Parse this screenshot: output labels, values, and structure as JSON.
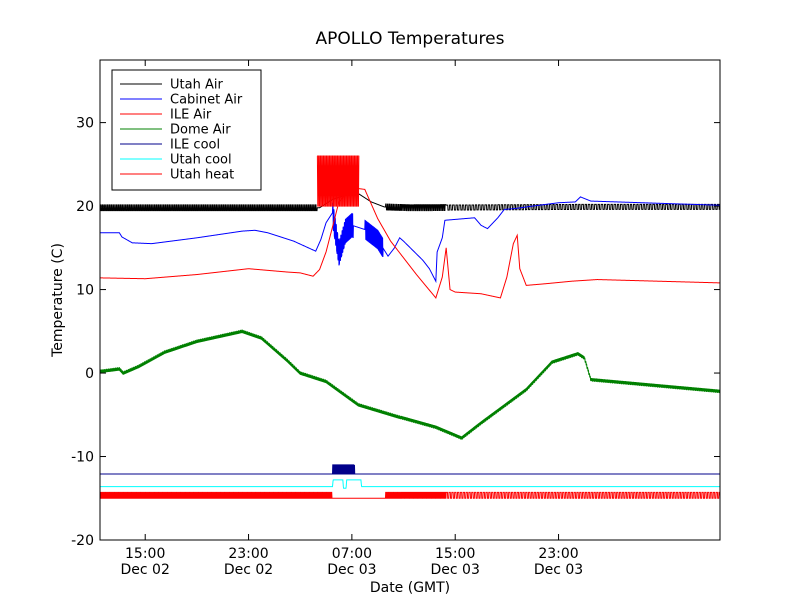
{
  "chart_data": {
    "type": "line",
    "title": "APOLLO Temperatures",
    "xlabel": "Date (GMT)",
    "ylabel": "Temperature (C)",
    "ylim": [
      -20,
      37.5
    ],
    "xlim_hours": [
      11.5,
      24.0,
      36.0,
      48.0,
      59.5
    ],
    "yticks": [
      -20,
      -10,
      0,
      10,
      20,
      30
    ],
    "ytick_labels": [
      "-20",
      "-10",
      "0",
      "10",
      "20",
      "30"
    ],
    "xticks": [
      {
        "hour": 15,
        "time": "15:00",
        "date": "Dec 02"
      },
      {
        "hour": 23,
        "time": "23:00",
        "date": "Dec 02"
      },
      {
        "hour": 31,
        "time": "07:00",
        "date": "Dec 03"
      },
      {
        "hour": 39,
        "time": "15:00",
        "date": "Dec 03"
      },
      {
        "hour": 47,
        "time": "23:00",
        "date": "Dec 03"
      }
    ],
    "grid": false,
    "legend_position": "top-left",
    "series": [
      {
        "name": "Utah Air",
        "color": "#000000",
        "line_width": 1,
        "points": [
          [
            11.5,
            19.8
          ],
          [
            28.5,
            19.8
          ],
          [
            29.5,
            20.8
          ],
          [
            30.5,
            21.3
          ],
          [
            31.5,
            21.5
          ],
          [
            32.5,
            20.5
          ],
          [
            33.5,
            19.9
          ],
          [
            35.5,
            19.8
          ],
          [
            48.5,
            19.9
          ],
          [
            59.5,
            19.9
          ]
        ],
        "noise": [
          {
            "from": 11.5,
            "to": 28.3,
            "amp": 0.35,
            "period": 0.14
          },
          {
            "from": 33.6,
            "to": 38.3,
            "amp": 0.35,
            "period": 0.14
          },
          {
            "from": 38.3,
            "to": 59.5,
            "amp": 0.3,
            "period": 0.25
          }
        ]
      },
      {
        "name": "Cabinet Air",
        "color": "#0000ff",
        "line_width": 1,
        "points": [
          [
            11.5,
            16.8
          ],
          [
            13.0,
            16.8
          ],
          [
            13.2,
            16.3
          ],
          [
            14.0,
            15.6
          ],
          [
            15.5,
            15.5
          ],
          [
            19.0,
            16.2
          ],
          [
            22.5,
            17.0
          ],
          [
            23.5,
            17.1
          ],
          [
            24.5,
            16.8
          ],
          [
            26.5,
            15.8
          ],
          [
            28.2,
            14.6
          ],
          [
            28.6,
            16.0
          ],
          [
            29.0,
            18.0
          ],
          [
            29.5,
            19.2
          ],
          [
            30.0,
            14.3
          ],
          [
            30.5,
            17.0
          ],
          [
            31.0,
            17.7
          ],
          [
            32.0,
            17.2
          ],
          [
            33.0,
            16.0
          ],
          [
            33.8,
            14.0
          ],
          [
            34.3,
            15.0
          ],
          [
            34.7,
            16.2
          ],
          [
            35.0,
            15.8
          ],
          [
            36.5,
            13.5
          ],
          [
            37.0,
            12.5
          ],
          [
            37.5,
            11.0
          ],
          [
            37.6,
            14.5
          ],
          [
            38.0,
            16.2
          ],
          [
            38.2,
            18.3
          ],
          [
            40.5,
            18.6
          ],
          [
            41.0,
            17.7
          ],
          [
            41.5,
            17.3
          ],
          [
            42.3,
            18.6
          ],
          [
            42.8,
            19.6
          ],
          [
            43.6,
            19.7
          ],
          [
            45.0,
            20.0
          ],
          [
            47.0,
            20.4
          ],
          [
            48.3,
            20.5
          ],
          [
            48.7,
            21.1
          ],
          [
            49.5,
            20.6
          ],
          [
            59.5,
            20.1
          ]
        ],
        "noise": [
          {
            "from": 29.5,
            "to": 31.1,
            "amp": 1.4,
            "period": 0.09
          },
          {
            "from": 32.0,
            "to": 33.4,
            "amp": 1.1,
            "period": 0.12
          }
        ]
      },
      {
        "name": "ILE Air",
        "color": "#ff0000",
        "line_width": 1,
        "points": [
          [
            11.5,
            11.4
          ],
          [
            15.0,
            11.3
          ],
          [
            19.0,
            11.8
          ],
          [
            23.0,
            12.5
          ],
          [
            26.0,
            12.1
          ],
          [
            27.0,
            12.0
          ],
          [
            28.0,
            11.6
          ],
          [
            28.5,
            12.4
          ],
          [
            29.0,
            14.5
          ],
          [
            30.0,
            20.5
          ],
          [
            31.0,
            22.2
          ],
          [
            32.0,
            22.0
          ],
          [
            33.0,
            18.5
          ],
          [
            34.0,
            15.8
          ],
          [
            36.0,
            11.8
          ],
          [
            37.5,
            9.0
          ],
          [
            38.0,
            11.5
          ],
          [
            38.3,
            15.0
          ],
          [
            38.6,
            10.0
          ],
          [
            39.0,
            9.7
          ],
          [
            41.0,
            9.5
          ],
          [
            42.5,
            9.0
          ],
          [
            43.0,
            11.5
          ],
          [
            43.5,
            15.5
          ],
          [
            43.8,
            16.5
          ],
          [
            44.0,
            12.5
          ],
          [
            44.5,
            10.5
          ],
          [
            46.0,
            10.7
          ],
          [
            48.0,
            11.0
          ],
          [
            50.0,
            11.2
          ],
          [
            59.5,
            10.8
          ]
        ],
        "noise": []
      },
      {
        "name": "Dome Air",
        "color": "#008000",
        "line_width": 1,
        "points": [
          [
            11.5,
            0.2
          ],
          [
            13.0,
            0.5
          ],
          [
            13.3,
            0.0
          ],
          [
            14.5,
            0.8
          ],
          [
            16.5,
            2.5
          ],
          [
            19.0,
            3.8
          ],
          [
            22.5,
            5.0
          ],
          [
            24.0,
            4.2
          ],
          [
            26.0,
            1.5
          ],
          [
            27.0,
            0.0
          ],
          [
            29.0,
            -1.0
          ],
          [
            31.5,
            -3.8
          ],
          [
            34.5,
            -5.2
          ],
          [
            37.5,
            -6.5
          ],
          [
            39.5,
            -7.8
          ],
          [
            41.0,
            -6.0
          ],
          [
            44.5,
            -2.0
          ],
          [
            46.5,
            1.3
          ],
          [
            48.5,
            2.3
          ],
          [
            49.0,
            1.8
          ],
          [
            49.5,
            -0.8
          ],
          [
            59.5,
            -2.2
          ]
        ],
        "noise": [
          {
            "from": 11.5,
            "to": 59.5,
            "amp": 0.15,
            "period": 0.07
          }
        ]
      },
      {
        "name": "ILE cool",
        "color": "#00008b",
        "line_width": 1,
        "points": [
          [
            11.5,
            -12.1
          ],
          [
            29.4,
            -12.1
          ],
          [
            30.5,
            -12.1
          ],
          [
            31.2,
            -12.1
          ],
          [
            59.5,
            -12.1
          ]
        ],
        "pulses": [
          {
            "from": 29.5,
            "to": 31.2,
            "base": -12.1,
            "high": -11.0,
            "period": 0.08
          }
        ]
      },
      {
        "name": "Utah cool",
        "color": "#00ffff",
        "line_width": 1,
        "points": [
          [
            11.5,
            -13.6
          ],
          [
            29.5,
            -13.6
          ],
          [
            29.55,
            -12.8
          ],
          [
            30.3,
            -12.8
          ],
          [
            30.35,
            -13.8
          ],
          [
            30.55,
            -13.8
          ],
          [
            30.6,
            -12.8
          ],
          [
            31.7,
            -12.8
          ],
          [
            31.75,
            -13.6
          ],
          [
            59.5,
            -13.6
          ]
        ]
      },
      {
        "name": "Utah heat",
        "color": "#ff0000",
        "line_width": 1,
        "points": [
          [
            11.5,
            -14.8
          ],
          [
            59.5,
            -14.8
          ]
        ],
        "pulses": [
          {
            "from": 11.5,
            "to": 29.5,
            "base": -15.0,
            "high": -14.3,
            "period": 0.1
          },
          {
            "from": 29.5,
            "to": 33.6,
            "base": -15.0,
            "high": -15.0,
            "period": 0.1
          },
          {
            "from": 33.6,
            "to": 38.3,
            "base": -15.0,
            "high": -14.3,
            "period": 0.1
          },
          {
            "from": 38.3,
            "to": 59.5,
            "base": -15.0,
            "high": -14.3,
            "period": 0.22
          }
        ]
      }
    ]
  }
}
